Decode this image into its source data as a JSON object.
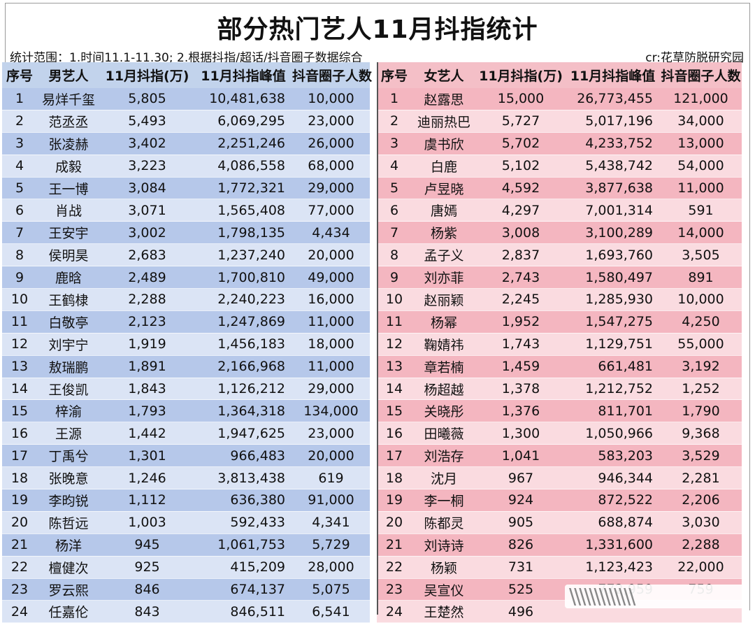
{
  "title": "部分热门艺人11月抖指统计",
  "scope_text": "统计范围：1.时间11.1-11.30; 2.根据抖指/超话/抖音圈子数据综合",
  "credit": "cr:花草防脱研究园",
  "male_table": {
    "headers": [
      "序号",
      "男艺人",
      "11月抖指(万)",
      "11月抖指峰值",
      "抖音圈子人数"
    ],
    "rows": [
      [
        "1",
        "易烊千玺",
        "5,805",
        "10,481,638",
        "10,000"
      ],
      [
        "2",
        "范丞丞",
        "5,493",
        "6,069,295",
        "23,000"
      ],
      [
        "3",
        "张凌赫",
        "3,402",
        "2,251,246",
        "26,000"
      ],
      [
        "4",
        "成毅",
        "3,223",
        "4,086,558",
        "68,000"
      ],
      [
        "5",
        "王一博",
        "3,084",
        "1,772,321",
        "29,000"
      ],
      [
        "6",
        "肖战",
        "3,071",
        "1,565,408",
        "77,000"
      ],
      [
        "7",
        "王安宇",
        "3,002",
        "1,798,135",
        "4,434"
      ],
      [
        "8",
        "侯明昊",
        "2,683",
        "1,237,240",
        "20,000"
      ],
      [
        "9",
        "鹿晗",
        "2,489",
        "1,700,810",
        "49,000"
      ],
      [
        "10",
        "王鹤棣",
        "2,288",
        "2,240,223",
        "16,000"
      ],
      [
        "11",
        "白敬亭",
        "2,123",
        "1,247,869",
        "11,000"
      ],
      [
        "12",
        "刘宇宁",
        "1,919",
        "1,456,183",
        "18,000"
      ],
      [
        "13",
        "敖瑞鹏",
        "1,891",
        "2,166,968",
        "11,000"
      ],
      [
        "14",
        "王俊凯",
        "1,843",
        "1,126,212",
        "29,000"
      ],
      [
        "15",
        "梓渝",
        "1,793",
        "1,364,318",
        "134,000"
      ],
      [
        "16",
        "王源",
        "1,442",
        "1,947,625",
        "23,000"
      ],
      [
        "17",
        "丁禹兮",
        "1,301",
        "966,483",
        "20,000"
      ],
      [
        "18",
        "张晚意",
        "1,246",
        "3,813,438",
        "619"
      ],
      [
        "19",
        "李昀锐",
        "1,112",
        "636,380",
        "91,000"
      ],
      [
        "20",
        "陈哲远",
        "1,003",
        "592,433",
        "4,341"
      ],
      [
        "21",
        "杨洋",
        "945",
        "1,061,753",
        "5,729"
      ],
      [
        "22",
        "檀健次",
        "925",
        "415,209",
        "28,000"
      ],
      [
        "23",
        "罗云熙",
        "846",
        "674,137",
        "5,075"
      ],
      [
        "24",
        "任嘉伦",
        "843",
        "846,511",
        "6,541"
      ]
    ]
  },
  "female_table": {
    "headers": [
      "序号",
      "女艺人",
      "11月抖指(万)",
      "11月抖指峰值",
      "抖音圈子人数"
    ],
    "rows": [
      [
        "1",
        "赵露思",
        "15,000",
        "26,773,455",
        "121,000"
      ],
      [
        "2",
        "迪丽热巴",
        "5,727",
        "5,017,196",
        "34,000"
      ],
      [
        "3",
        "虞书欣",
        "5,702",
        "4,233,752",
        "13,000"
      ],
      [
        "4",
        "白鹿",
        "5,102",
        "5,438,742",
        "54,000"
      ],
      [
        "5",
        "卢昱晓",
        "4,592",
        "3,877,638",
        "11,000"
      ],
      [
        "6",
        "唐嫣",
        "4,297",
        "7,001,314",
        "591"
      ],
      [
        "7",
        "杨紫",
        "3,008",
        "3,100,289",
        "14,000"
      ],
      [
        "8",
        "孟子义",
        "2,837",
        "1,693,760",
        "3,505"
      ],
      [
        "9",
        "刘亦菲",
        "2,743",
        "1,580,497",
        "891"
      ],
      [
        "10",
        "赵丽颖",
        "2,245",
        "1,285,930",
        "10,000"
      ],
      [
        "11",
        "杨幂",
        "1,952",
        "1,547,275",
        "4,250"
      ],
      [
        "12",
        "鞠婧祎",
        "1,743",
        "1,129,751",
        "55,000"
      ],
      [
        "13",
        "章若楠",
        "1,459",
        "661,481",
        "3,192"
      ],
      [
        "14",
        "杨超越",
        "1,378",
        "1,212,752",
        "1,252"
      ],
      [
        "15",
        "关晓彤",
        "1,376",
        "811,701",
        "1,790"
      ],
      [
        "16",
        "田曦薇",
        "1,300",
        "1,050,966",
        "9,368"
      ],
      [
        "17",
        "刘浩存",
        "1,041",
        "583,203",
        "3,529"
      ],
      [
        "18",
        "沈月",
        "967",
        "946,344",
        "2,281"
      ],
      [
        "19",
        "李一桐",
        "924",
        "872,522",
        "2,206"
      ],
      [
        "20",
        "陈都灵",
        "905",
        "688,874",
        "3,030"
      ],
      [
        "21",
        "刘诗诗",
        "826",
        "1,331,600",
        "2,288"
      ],
      [
        "22",
        "杨颖",
        "731",
        "1,123,423",
        "22,000"
      ],
      [
        "23",
        "吴宣仪",
        "525",
        "772,959",
        "759"
      ],
      [
        "24",
        "王楚然",
        "496",
        "",
        ""
      ]
    ]
  },
  "watermark_glyphs": "\\\\\\\\\\\\\\\\\\\\\\\\\\"
}
